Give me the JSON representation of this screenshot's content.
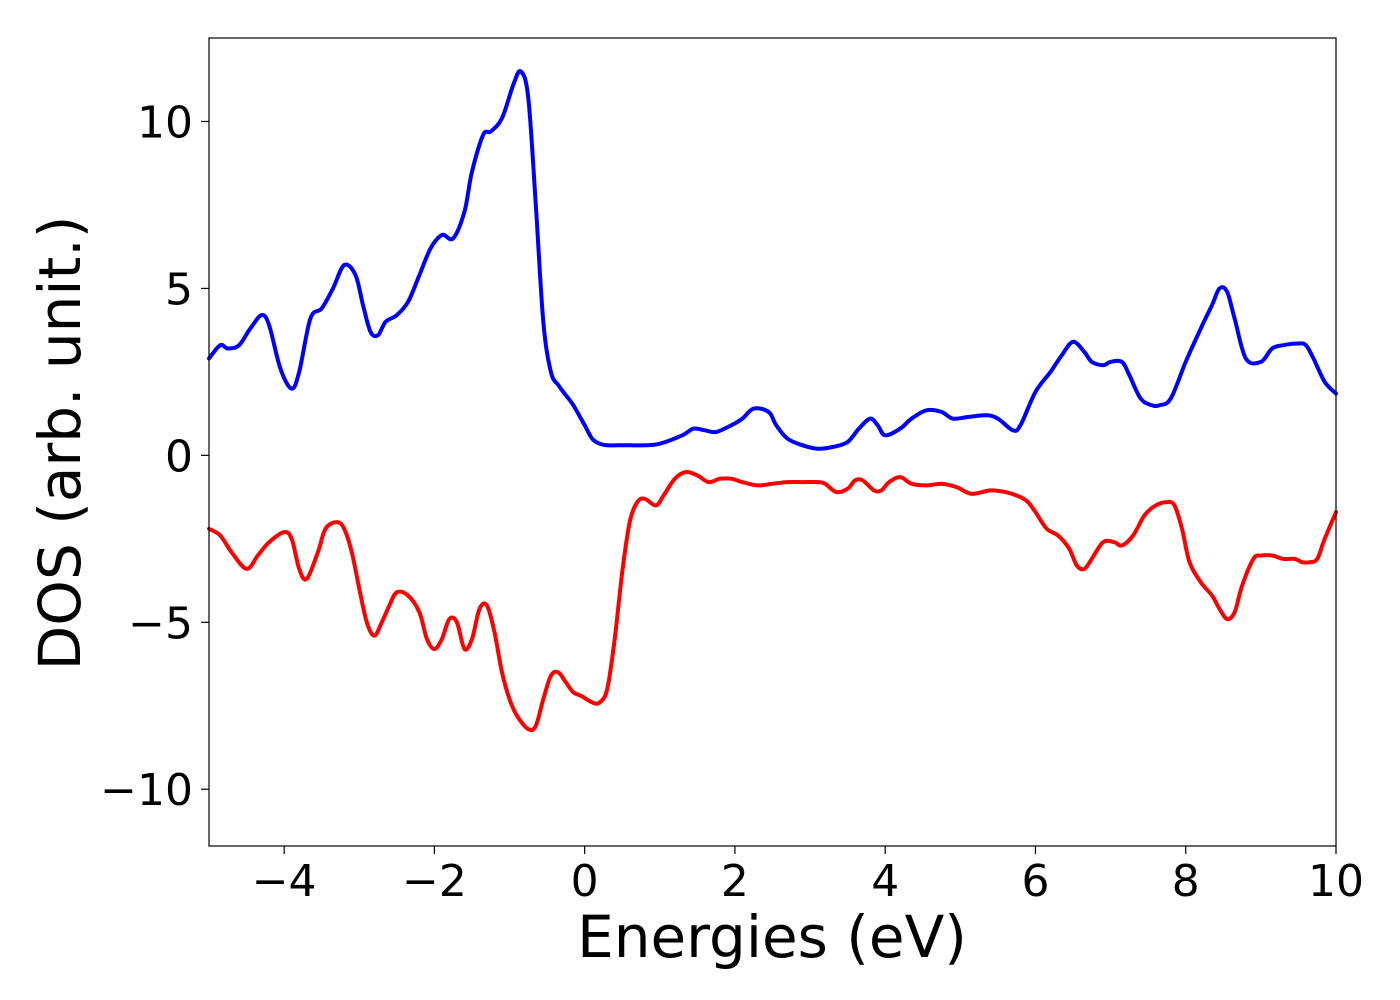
{
  "chart_data": {
    "type": "line",
    "title": "",
    "xlabel": "Energies (eV)",
    "ylabel": "DOS (arb. unit.)",
    "xlim": [
      -5,
      10
    ],
    "ylim": [
      -11.7,
      12.5
    ],
    "grid": false,
    "legend": "none",
    "xticks": [
      -4,
      -2,
      0,
      2,
      4,
      6,
      8,
      10
    ],
    "xtick_labels": [
      "−4",
      "−2",
      "0",
      "2",
      "4",
      "6",
      "8",
      "10"
    ],
    "yticks": [
      -10,
      -5,
      0,
      5,
      10
    ],
    "ytick_labels": [
      "−10",
      "−5",
      "0",
      "5",
      "10"
    ],
    "series": [
      {
        "color": "#0000ff",
        "x": [
          -5.0,
          -4.85,
          -4.75,
          -4.6,
          -4.45,
          -4.3,
          -4.2,
          -4.05,
          -3.9,
          -3.8,
          -3.65,
          -3.5,
          -3.35,
          -3.2,
          -3.05,
          -2.95,
          -2.85,
          -2.75,
          -2.65,
          -2.5,
          -2.35,
          -2.2,
          -2.05,
          -1.9,
          -1.75,
          -1.6,
          -1.5,
          -1.35,
          -1.25,
          -1.1,
          -0.95,
          -0.85,
          -0.75,
          -0.65,
          -0.55,
          -0.45,
          -0.35,
          -0.25,
          -0.15,
          0.0,
          0.1,
          0.2,
          0.3,
          0.45,
          0.6,
          0.8,
          1.0,
          1.3,
          1.45,
          1.6,
          1.75,
          1.95,
          2.1,
          2.25,
          2.45,
          2.55,
          2.7,
          2.9,
          3.1,
          3.3,
          3.5,
          3.65,
          3.8,
          3.9,
          4.0,
          4.2,
          4.35,
          4.55,
          4.75,
          4.9,
          5.1,
          5.35,
          5.5,
          5.7,
          5.8,
          6.0,
          6.2,
          6.35,
          6.5,
          6.65,
          6.75,
          6.9,
          7.0,
          7.15,
          7.25,
          7.4,
          7.55,
          7.65,
          7.8,
          8.0,
          8.2,
          8.35,
          8.45,
          8.55,
          8.65,
          8.8,
          9.0,
          9.15,
          9.3,
          9.5,
          9.6,
          9.7,
          9.85,
          10.0
        ],
        "y": [
          2.9,
          3.3,
          3.2,
          3.3,
          3.8,
          4.2,
          3.9,
          2.6,
          2.0,
          2.5,
          4.1,
          4.4,
          5.0,
          5.7,
          5.4,
          4.5,
          3.7,
          3.6,
          4.0,
          4.2,
          4.6,
          5.4,
          6.2,
          6.6,
          6.5,
          7.3,
          8.5,
          9.6,
          9.7,
          10.1,
          11.1,
          11.5,
          10.7,
          7.5,
          4.0,
          2.5,
          2.1,
          1.8,
          1.5,
          0.9,
          0.5,
          0.35,
          0.3,
          0.3,
          0.3,
          0.3,
          0.35,
          0.6,
          0.8,
          0.75,
          0.7,
          0.9,
          1.1,
          1.4,
          1.3,
          0.9,
          0.5,
          0.3,
          0.2,
          0.25,
          0.4,
          0.8,
          1.1,
          0.9,
          0.6,
          0.8,
          1.1,
          1.35,
          1.3,
          1.1,
          1.15,
          1.2,
          1.1,
          0.75,
          0.9,
          1.9,
          2.5,
          3.0,
          3.4,
          3.1,
          2.8,
          2.7,
          2.8,
          2.8,
          2.4,
          1.7,
          1.5,
          1.5,
          1.7,
          2.8,
          3.8,
          4.5,
          5.0,
          4.9,
          4.1,
          2.9,
          2.8,
          3.2,
          3.3,
          3.35,
          3.3,
          2.9,
          2.2,
          1.85
        ]
      },
      {
        "color": "#ff0000",
        "x": [
          -5.0,
          -4.85,
          -4.7,
          -4.5,
          -4.35,
          -4.2,
          -4.0,
          -3.9,
          -3.8,
          -3.7,
          -3.55,
          -3.45,
          -3.3,
          -3.2,
          -3.1,
          -3.0,
          -2.9,
          -2.8,
          -2.7,
          -2.6,
          -2.5,
          -2.35,
          -2.2,
          -2.1,
          -2.0,
          -1.9,
          -1.8,
          -1.7,
          -1.6,
          -1.5,
          -1.4,
          -1.3,
          -1.2,
          -1.1,
          -1.0,
          -0.9,
          -0.75,
          -0.65,
          -0.55,
          -0.45,
          -0.35,
          -0.25,
          -0.15,
          -0.05,
          0.1,
          0.2,
          0.3,
          0.4,
          0.5,
          0.6,
          0.7,
          0.8,
          0.95,
          1.05,
          1.2,
          1.35,
          1.5,
          1.65,
          1.8,
          1.95,
          2.1,
          2.3,
          2.5,
          2.7,
          2.9,
          3.1,
          3.2,
          3.35,
          3.5,
          3.6,
          3.7,
          3.85,
          3.95,
          4.05,
          4.2,
          4.35,
          4.55,
          4.75,
          4.95,
          5.15,
          5.4,
          5.6,
          5.8,
          5.9,
          6.0,
          6.15,
          6.3,
          6.45,
          6.55,
          6.65,
          6.75,
          6.9,
          7.05,
          7.15,
          7.3,
          7.45,
          7.6,
          7.75,
          7.85,
          7.95,
          8.05,
          8.2,
          8.35,
          8.45,
          8.55,
          8.65,
          8.75,
          8.9,
          9.0,
          9.15,
          9.3,
          9.45,
          9.55,
          9.65,
          9.75,
          9.85,
          10.0
        ],
        "y": [
          -2.2,
          -2.4,
          -2.9,
          -3.4,
          -3.0,
          -2.6,
          -2.3,
          -2.5,
          -3.4,
          -3.7,
          -2.9,
          -2.2,
          -2.0,
          -2.2,
          -2.9,
          -4.0,
          -5.0,
          -5.4,
          -5.0,
          -4.5,
          -4.1,
          -4.2,
          -4.7,
          -5.5,
          -5.8,
          -5.5,
          -4.9,
          -5.0,
          -5.8,
          -5.5,
          -4.6,
          -4.5,
          -5.3,
          -6.5,
          -7.3,
          -7.8,
          -8.2,
          -8.1,
          -7.3,
          -6.6,
          -6.5,
          -6.8,
          -7.1,
          -7.2,
          -7.4,
          -7.4,
          -7.0,
          -5.5,
          -3.5,
          -2.0,
          -1.4,
          -1.3,
          -1.5,
          -1.2,
          -0.7,
          -0.5,
          -0.6,
          -0.8,
          -0.7,
          -0.7,
          -0.8,
          -0.9,
          -0.85,
          -0.8,
          -0.8,
          -0.8,
          -0.85,
          -1.1,
          -1.0,
          -0.75,
          -0.75,
          -1.05,
          -1.05,
          -0.8,
          -0.65,
          -0.85,
          -0.9,
          -0.85,
          -0.95,
          -1.15,
          -1.05,
          -1.1,
          -1.25,
          -1.4,
          -1.7,
          -2.2,
          -2.4,
          -2.8,
          -3.3,
          -3.4,
          -3.1,
          -2.6,
          -2.6,
          -2.7,
          -2.4,
          -1.8,
          -1.5,
          -1.4,
          -1.5,
          -2.2,
          -3.2,
          -3.8,
          -4.2,
          -4.6,
          -4.9,
          -4.7,
          -3.9,
          -3.1,
          -3.0,
          -3.0,
          -3.1,
          -3.1,
          -3.2,
          -3.2,
          -3.1,
          -2.5,
          -1.7
        ]
      }
    ]
  }
}
